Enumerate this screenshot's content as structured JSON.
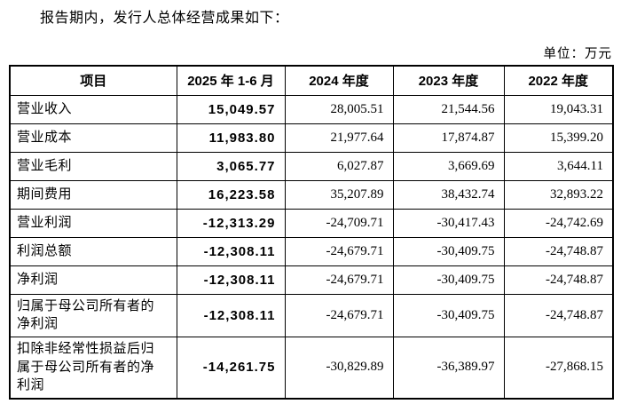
{
  "page": {
    "intro_text": "报告期内，发行人总体经营成果如下：",
    "unit_label": "单位：万元"
  },
  "table": {
    "columns": [
      "项目",
      "2025 年 1-6 月",
      "2024 年度",
      "2023 年度",
      "2022 年度"
    ],
    "rows": [
      {
        "label": "营业收入",
        "values": [
          "15,049.57",
          "28,005.51",
          "21,544.56",
          "19,043.31"
        ]
      },
      {
        "label": "营业成本",
        "values": [
          "11,983.80",
          "21,977.64",
          "17,874.87",
          "15,399.20"
        ]
      },
      {
        "label": "营业毛利",
        "values": [
          "3,065.77",
          "6,027.87",
          "3,669.69",
          "3,644.11"
        ]
      },
      {
        "label": "期间费用",
        "values": [
          "16,223.58",
          "35,207.89",
          "38,432.74",
          "32,893.22"
        ]
      },
      {
        "label": "营业利润",
        "values": [
          "-12,313.29",
          "-24,709.71",
          "-30,417.43",
          "-24,742.69"
        ]
      },
      {
        "label": "利润总额",
        "values": [
          "-12,308.11",
          "-24,679.71",
          "-30,409.75",
          "-24,748.87"
        ]
      },
      {
        "label": "净利润",
        "values": [
          "-12,308.11",
          "-24,679.71",
          "-30,409.75",
          "-24,748.87"
        ]
      },
      {
        "label": "归属于母公司所有者的净利润",
        "values": [
          "-12,308.11",
          "-24,679.71",
          "-30,409.75",
          "-24,748.87"
        ]
      },
      {
        "label": "扣除非经常性损益后归属于母公司所有者的净利润",
        "values": [
          "-14,261.75",
          "-30,829.89",
          "-36,389.97",
          "-27,868.15"
        ]
      }
    ]
  }
}
